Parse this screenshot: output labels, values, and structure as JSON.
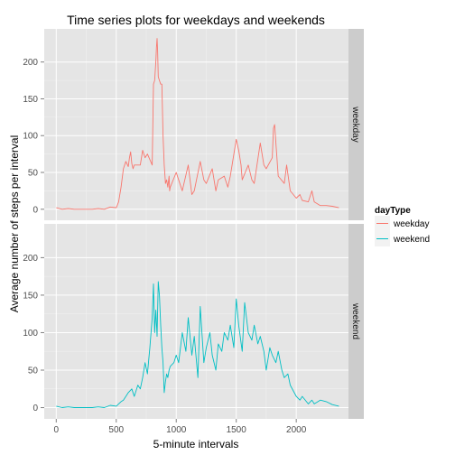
{
  "chart_data": {
    "type": "line",
    "title": "Time series plots for weekdays and weekends",
    "xlabel": "5-minute intervals",
    "ylabel": "Average number of steps per interval",
    "xlim": [
      -100,
      2435
    ],
    "ylim": [
      -15,
      245
    ],
    "x_ticks": [
      0,
      500,
      1000,
      1500,
      2000
    ],
    "y_ticks": [
      0,
      50,
      100,
      150,
      200
    ],
    "x_tick_labels": [
      "0",
      "500",
      "1000",
      "1500",
      "2000"
    ],
    "y_tick_labels": [
      "0",
      "50",
      "100",
      "150",
      "200"
    ],
    "grid": true,
    "legend_title": "dayType",
    "legend_position": "right",
    "colors": {
      "weekday": "#f8766d",
      "weekend": "#00bfc4"
    },
    "series": [
      {
        "name": "weekday",
        "facet": "weekday",
        "x": [
          0,
          50,
          100,
          150,
          200,
          250,
          300,
          350,
          400,
          450,
          500,
          520,
          540,
          560,
          580,
          600,
          610,
          620,
          630,
          640,
          650,
          700,
          720,
          740,
          760,
          800,
          810,
          820,
          830,
          835,
          840,
          845,
          850,
          860,
          870,
          880,
          890,
          900,
          910,
          920,
          930,
          940,
          945,
          950,
          1000,
          1030,
          1050,
          1100,
          1130,
          1150,
          1200,
          1230,
          1250,
          1300,
          1330,
          1350,
          1400,
          1430,
          1450,
          1500,
          1520,
          1540,
          1550,
          1600,
          1630,
          1650,
          1700,
          1730,
          1750,
          1800,
          1810,
          1820,
          1830,
          1850,
          1900,
          1920,
          1950,
          2000,
          2030,
          2050,
          2100,
          2130,
          2150,
          2200,
          2250,
          2300,
          2355
        ],
        "values": [
          2,
          0,
          1,
          0,
          0,
          0,
          0,
          1,
          0,
          3,
          2,
          10,
          30,
          55,
          65,
          58,
          70,
          78,
          62,
          55,
          60,
          60,
          80,
          70,
          75,
          60,
          170,
          175,
          200,
          220,
          232,
          215,
          180,
          175,
          170,
          170,
          100,
          60,
          35,
          40,
          30,
          45,
          25,
          30,
          50,
          35,
          25,
          60,
          20,
          25,
          65,
          40,
          35,
          55,
          25,
          40,
          45,
          30,
          45,
          95,
          80,
          60,
          40,
          60,
          40,
          35,
          90,
          60,
          55,
          70,
          110,
          115,
          90,
          45,
          35,
          60,
          25,
          15,
          20,
          12,
          10,
          25,
          10,
          5,
          5,
          4,
          2
        ]
      },
      {
        "name": "weekend",
        "facet": "weekend",
        "x": [
          0,
          50,
          100,
          150,
          200,
          250,
          300,
          350,
          400,
          450,
          500,
          520,
          540,
          560,
          580,
          600,
          630,
          650,
          680,
          700,
          720,
          740,
          760,
          780,
          800,
          810,
          820,
          830,
          840,
          850,
          860,
          870,
          880,
          890,
          900,
          910,
          920,
          930,
          940,
          950,
          980,
          1000,
          1020,
          1050,
          1080,
          1100,
          1130,
          1150,
          1180,
          1200,
          1230,
          1250,
          1280,
          1300,
          1330,
          1350,
          1380,
          1400,
          1430,
          1450,
          1480,
          1500,
          1520,
          1550,
          1570,
          1600,
          1630,
          1650,
          1680,
          1700,
          1730,
          1750,
          1780,
          1800,
          1830,
          1850,
          1880,
          1900,
          1930,
          1950,
          2000,
          2030,
          2050,
          2100,
          2130,
          2150,
          2200,
          2250,
          2300,
          2355
        ],
        "values": [
          2,
          0,
          1,
          0,
          0,
          0,
          0,
          1,
          0,
          3,
          2,
          5,
          8,
          10,
          15,
          20,
          25,
          15,
          30,
          25,
          40,
          60,
          45,
          80,
          120,
          165,
          100,
          130,
          95,
          168,
          150,
          110,
          80,
          60,
          20,
          35,
          45,
          40,
          50,
          55,
          60,
          70,
          60,
          100,
          75,
          120,
          70,
          95,
          40,
          135,
          60,
          80,
          100,
          70,
          50,
          85,
          75,
          100,
          90,
          110,
          80,
          145,
          110,
          75,
          140,
          100,
          90,
          110,
          85,
          95,
          75,
          50,
          80,
          70,
          60,
          75,
          50,
          40,
          45,
          30,
          15,
          10,
          15,
          5,
          10,
          5,
          10,
          8,
          4,
          2
        ]
      }
    ]
  }
}
